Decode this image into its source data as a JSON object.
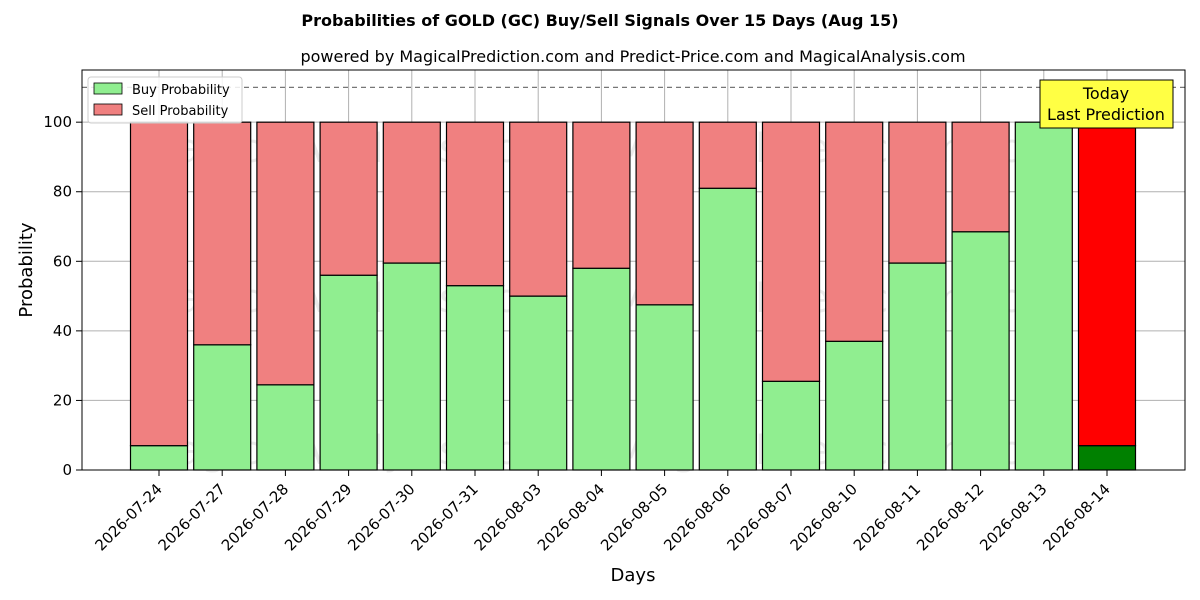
{
  "chart_data": {
    "type": "bar",
    "title": "Probabilities of GOLD (GC) Buy/Sell Signals Over 15 Days (Aug 15)",
    "subtitle": "powered by MagicalPrediction.com and Predict-Price.com and MagicalAnalysis.com",
    "xlabel": "Days",
    "ylabel": "Probability",
    "ylim": [
      0,
      115
    ],
    "yticks": [
      0,
      20,
      40,
      60,
      80,
      100
    ],
    "grid": true,
    "stacked": true,
    "legend_position": "top-left",
    "reference_line": 110,
    "categories": [
      "2026-07-24",
      "2026-07-27",
      "2026-07-28",
      "2026-07-29",
      "2026-07-30",
      "2026-07-31",
      "2026-08-03",
      "2026-08-04",
      "2026-08-05",
      "2026-08-06",
      "2026-08-07",
      "2026-08-10",
      "2026-08-11",
      "2026-08-12",
      "2026-08-13",
      "2026-08-14"
    ],
    "series": [
      {
        "name": "Buy Probability",
        "color": "#90EE90",
        "values": [
          7,
          36,
          24.5,
          56,
          59.5,
          53,
          50,
          58,
          47.5,
          81,
          25.5,
          37,
          59.5,
          68.5,
          100,
          7
        ]
      },
      {
        "name": "Sell Probability",
        "color": "#F08080",
        "values": [
          93,
          64,
          75.5,
          44,
          40.5,
          47,
          50,
          42,
          52.5,
          19,
          74.5,
          63,
          40.5,
          31.5,
          0,
          93
        ]
      }
    ],
    "highlight": {
      "index": 15,
      "buy_color": "#008000",
      "sell_color": "#FF0000"
    },
    "annotation": {
      "line1": "Today",
      "line2": "Last Prediction",
      "color": "#FFFF44"
    },
    "watermarks": [
      "MagicalAnalysis.com",
      "MagicalPrediction.com"
    ]
  }
}
